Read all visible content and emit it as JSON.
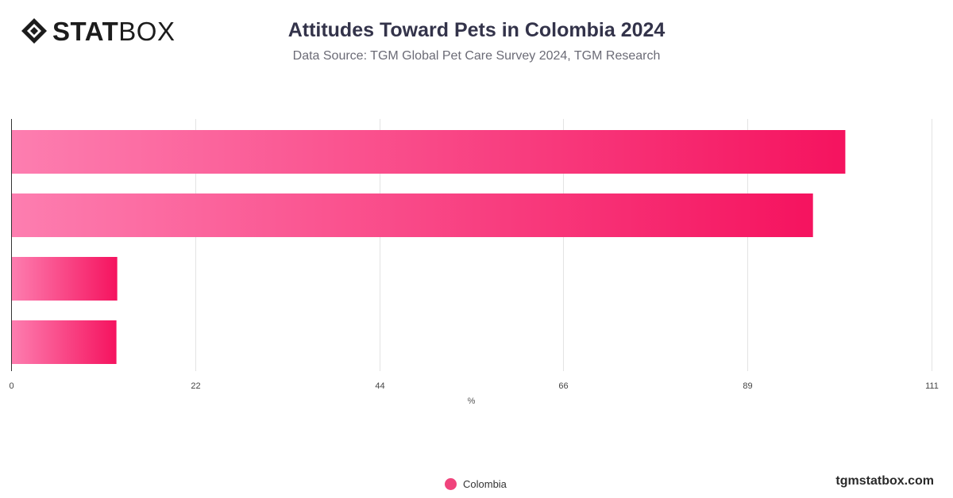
{
  "brand": {
    "logo_bold": "STAT",
    "logo_light": "BOX",
    "url": "tgmstatbox.com"
  },
  "chart_data": {
    "type": "bar",
    "orientation": "horizontal",
    "title": "Attitudes Toward Pets in Colombia 2024",
    "subtitle": "Data Source: TGM Global Pet Care Survey 2024, TGM Research",
    "xlabel": "%",
    "ylabel": "",
    "xlim": [
      0,
      111
    ],
    "xticks": [
      "0",
      "22",
      "44",
      "66",
      "89",
      "111"
    ],
    "xtick_values": [
      0,
      22.2,
      44.4,
      66.6,
      88.8,
      111
    ],
    "categories": [
      "",
      "",
      "",
      ""
    ],
    "series": [
      {
        "name": "Colombia",
        "values": [
          100.6,
          96.7,
          12.8,
          12.7
        ]
      }
    ],
    "grid": true,
    "legend_position": "bottom-center",
    "colors": {
      "bar_start": "#fd7eb0",
      "bar_end": "#f5135f",
      "legend_dot": "#f0447c",
      "grid": "#e3e3e3",
      "axis": "#333333"
    }
  }
}
